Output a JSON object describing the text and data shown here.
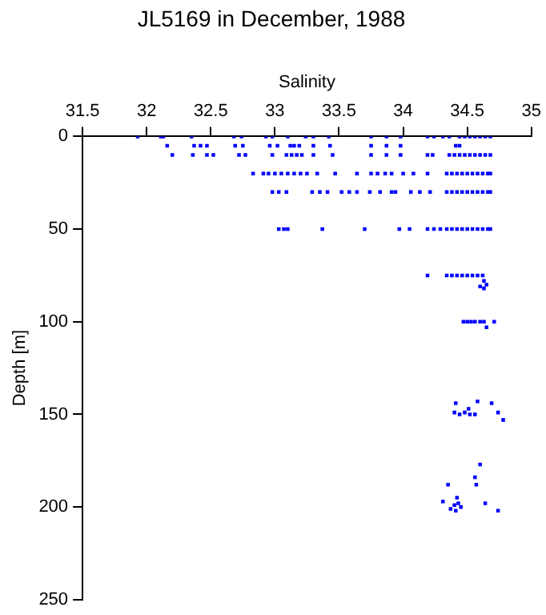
{
  "chart_data": {
    "type": "scatter",
    "title": "JL5169 in December, 1988",
    "xlabel": "Salinity",
    "ylabel": "Depth [m]",
    "xlim": [
      31.5,
      35
    ],
    "xticks": [
      31.5,
      32,
      32.5,
      33,
      33.5,
      34,
      34.5,
      35
    ],
    "ylim": [
      250,
      0
    ],
    "yticks": [
      0,
      50,
      100,
      150,
      200,
      250
    ],
    "grid": false,
    "legend": false,
    "marker": "square",
    "series": [
      {
        "color": "#0000ff",
        "x": [
          31.93,
          32.11,
          32.13,
          32.35,
          32.68,
          32.74,
          32.93,
          32.98,
          33.1,
          33.24,
          33.3,
          33.42,
          33.75,
          33.87,
          33.98,
          34.19,
          34.24,
          34.31,
          34.36,
          34.44,
          34.48,
          34.52,
          34.56,
          34.6,
          34.64,
          34.68,
          32.16,
          32.37,
          32.42,
          32.47,
          32.69,
          32.75,
          32.96,
          33.02,
          33.12,
          33.15,
          33.19,
          33.3,
          33.43,
          33.75,
          33.87,
          33.98,
          34.41,
          34.44,
          32.2,
          32.36,
          32.47,
          32.52,
          32.72,
          32.77,
          32.98,
          33.09,
          33.13,
          33.17,
          33.21,
          33.3,
          33.45,
          33.75,
          33.87,
          33.98,
          34.19,
          34.23,
          34.36,
          34.4,
          34.44,
          34.48,
          34.52,
          34.56,
          34.6,
          34.64,
          34.68,
          32.83,
          32.91,
          32.95,
          33.0,
          33.05,
          33.1,
          33.15,
          33.2,
          33.25,
          33.33,
          33.47,
          33.64,
          33.75,
          33.8,
          33.86,
          33.91,
          34.0,
          34.08,
          34.19,
          34.34,
          34.38,
          34.42,
          34.46,
          34.5,
          34.54,
          34.58,
          34.62,
          34.66,
          34.68,
          32.98,
          33.03,
          33.09,
          33.29,
          33.35,
          33.41,
          33.52,
          33.58,
          33.64,
          33.74,
          33.82,
          33.91,
          33.94,
          34.06,
          34.13,
          34.21,
          34.34,
          34.38,
          34.42,
          34.46,
          34.5,
          34.54,
          34.58,
          34.62,
          34.66,
          34.68,
          33.03,
          33.07,
          33.1,
          33.37,
          33.7,
          33.97,
          34.05,
          34.19,
          34.24,
          34.29,
          34.34,
          34.38,
          34.42,
          34.46,
          34.5,
          34.54,
          34.58,
          34.62,
          34.66,
          34.68,
          34.19,
          34.34,
          34.38,
          34.42,
          34.46,
          34.5,
          34.54,
          34.58,
          34.62,
          34.63,
          34.65,
          34.6,
          34.63,
          34.47,
          34.5,
          34.53,
          34.56,
          34.6,
          34.63,
          34.71,
          34.65,
          34.41,
          34.58,
          34.69,
          34.74,
          34.78,
          34.4,
          34.44,
          34.48,
          34.51,
          34.52,
          34.56,
          34.6,
          34.56,
          34.35,
          34.57,
          34.31,
          34.42,
          34.37,
          34.4,
          34.43,
          34.45,
          34.41,
          34.64,
          34.74
        ],
        "values": [
          0,
          0,
          0,
          0,
          0,
          0,
          0,
          0,
          0,
          0,
          0,
          0,
          0,
          0,
          0,
          0,
          0,
          0,
          0,
          0,
          0,
          0,
          0,
          0,
          0,
          0,
          5,
          5,
          5,
          5,
          5,
          5,
          5,
          5,
          5,
          5,
          5,
          5,
          5,
          5,
          5,
          5,
          5,
          5,
          10,
          10,
          10,
          10,
          10,
          10,
          10,
          10,
          10,
          10,
          10,
          10,
          10,
          10,
          10,
          10,
          10,
          10,
          10,
          10,
          10,
          10,
          10,
          10,
          10,
          10,
          10,
          20,
          20,
          20,
          20,
          20,
          20,
          20,
          20,
          20,
          20,
          20,
          20,
          20,
          20,
          20,
          20,
          20,
          20,
          20,
          20,
          20,
          20,
          20,
          20,
          20,
          20,
          20,
          20,
          20,
          30,
          30,
          30,
          30,
          30,
          30,
          30,
          30,
          30,
          30,
          30,
          30,
          30,
          30,
          30,
          30,
          30,
          30,
          30,
          30,
          30,
          30,
          30,
          30,
          30,
          30,
          50,
          50,
          50,
          50,
          50,
          50,
          50,
          50,
          50,
          50,
          50,
          50,
          50,
          50,
          50,
          50,
          50,
          50,
          50,
          50,
          75,
          75,
          75,
          75,
          75,
          75,
          75,
          75,
          75,
          78,
          80,
          81,
          82,
          100,
          100,
          100,
          100,
          100,
          100,
          100,
          103,
          144,
          143,
          144,
          149,
          153,
          149,
          150,
          149,
          147,
          150,
          150,
          177,
          184,
          188,
          188,
          197,
          195,
          201,
          199,
          198,
          200,
          202,
          198,
          202
        ]
      }
    ]
  }
}
